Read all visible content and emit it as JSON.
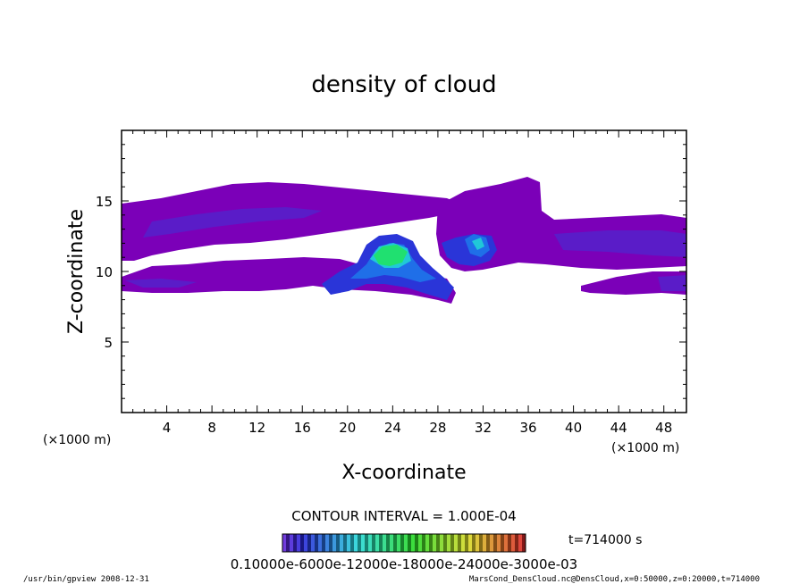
{
  "chart_data": {
    "type": "heatmap",
    "title": "density of cloud",
    "xlabel": "X-coordinate",
    "ylabel": "Z-coordinate",
    "x_unit": "(×1000 m)",
    "y_unit": "(×1000 m)",
    "xlim": [
      0,
      50
    ],
    "ylim": [
      0,
      20
    ],
    "x_ticks": [
      "4",
      "8",
      "12",
      "16",
      "20",
      "24",
      "28",
      "32",
      "36",
      "40",
      "44",
      "48"
    ],
    "y_ticks": [
      "5",
      "10",
      "15"
    ],
    "contour_interval": "CONTOUR INTERVAL = 1.000E-04",
    "time_label": "t=714000 s",
    "colorbar_labels": [
      "0.1000",
      "e-6",
      "0.1",
      "e-1",
      "e-3",
      "e-3"
    ],
    "colorbar_text": "0.10000e-6000e-12000e-18000e-24000e-3000e-03",
    "colors": {
      "level1": "#7b00b8",
      "level2": "#5a1cc8",
      "level3": "#2a35d8",
      "level4": "#1f6fe8",
      "level5": "#20c8d8",
      "level6": "#20e070"
    },
    "regions": [
      {
        "name": "upper-left-band",
        "level": 1,
        "x_range": [
          0,
          27
        ],
        "z_range": [
          11.3,
          16
        ]
      },
      {
        "name": "upper-right-band",
        "level": 1,
        "x_range": [
          26,
          50
        ],
        "z_range": [
          10.4,
          16.5
        ]
      },
      {
        "name": "lower-left-band",
        "level": 1,
        "x_range": [
          0,
          30
        ],
        "z_range": [
          8.5,
          10.7
        ]
      },
      {
        "name": "lower-right-band",
        "level": 1,
        "x_range": [
          40,
          50
        ],
        "z_range": [
          8.5,
          10.2
        ]
      },
      {
        "name": "central-core",
        "level": 6,
        "x_range": [
          22,
          25
        ],
        "z_range": [
          10.5,
          11.8
        ]
      }
    ]
  },
  "footer": {
    "left": "/usr/bin/gpview   2008-12-31",
    "right": "MarsCond_DensCloud.nc@DensCloud,x=0:50000,z=0:20000,t=714000"
  }
}
